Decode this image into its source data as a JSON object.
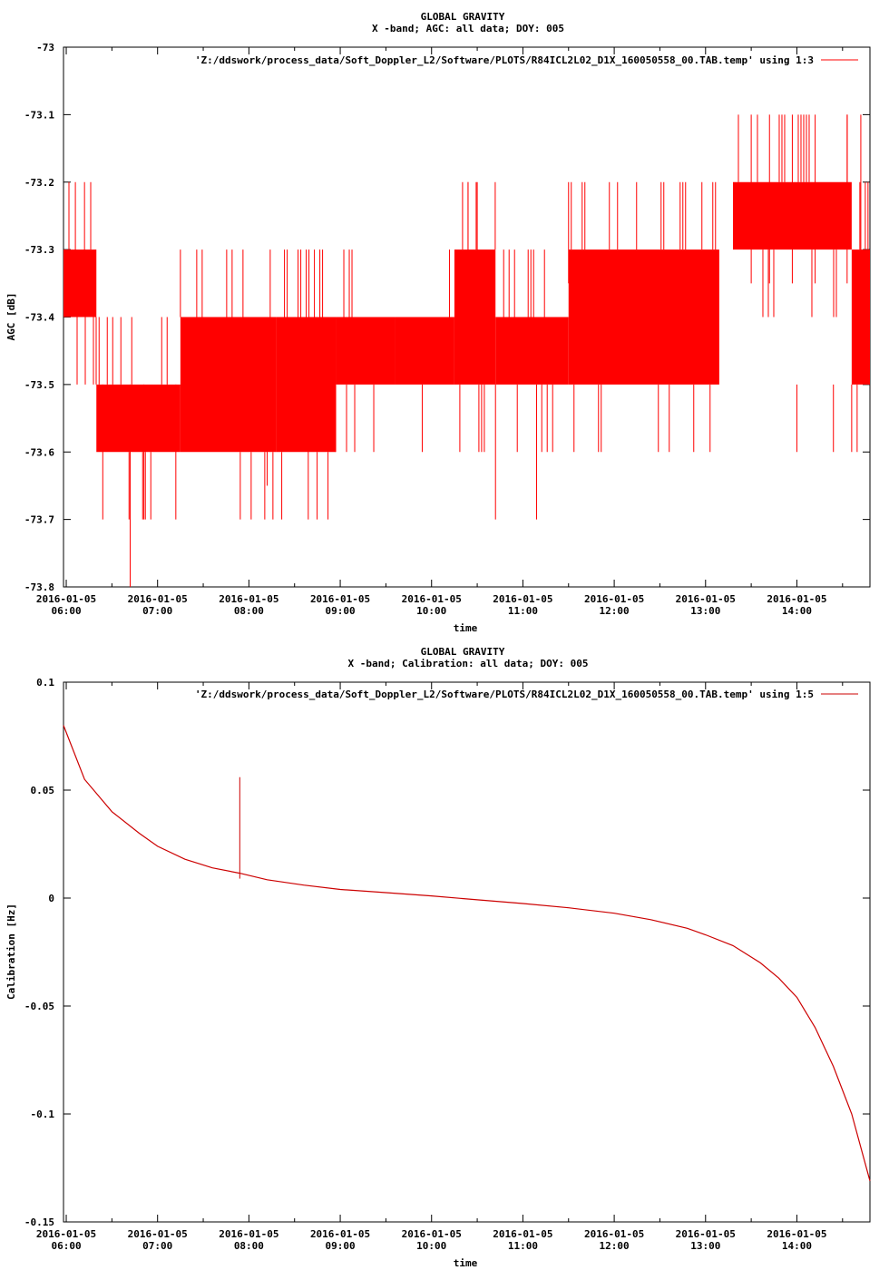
{
  "chart_data": [
    {
      "type": "line",
      "title": "GLOBAL GRAVITY",
      "subtitle": "X -band; AGC: all data; DOY: 005",
      "xlabel": "time",
      "ylabel": "AGC [dB]",
      "legend": "'Z:/ddswork/process_data/Soft_Doppler_L2/Software/PLOTS/R84ICL2L02_D1X_160050558_00.TAB.temp' using 1:3",
      "legend_position": "top-right",
      "series_color": "#ff0000",
      "xlim_hours": [
        5.97,
        14.8
      ],
      "ylim": [
        -73.8,
        -73.0
      ],
      "yticks": [
        -73.0,
        -73.1,
        -73.2,
        -73.3,
        -73.4,
        -73.5,
        -73.6,
        -73.7,
        -73.8
      ],
      "yticklabels": [
        "-73",
        "-73.1",
        "-73.2",
        "-73.3",
        "-73.4",
        "-73.5",
        "-73.6",
        "-73.7",
        "-73.8"
      ],
      "xticks_hours": [
        6,
        7,
        8,
        9,
        10,
        11,
        12,
        13,
        14
      ],
      "xticklabels": [
        [
          "2016-01-05",
          "06:00"
        ],
        [
          "2016-01-05",
          "07:00"
        ],
        [
          "2016-01-05",
          "08:00"
        ],
        [
          "2016-01-05",
          "09:00"
        ],
        [
          "2016-01-05",
          "10:00"
        ],
        [
          "2016-01-05",
          "11:00"
        ],
        [
          "2016-01-05",
          "12:00"
        ],
        [
          "2016-01-05",
          "13:00"
        ],
        [
          "2016-01-05",
          "14:00"
        ]
      ],
      "bands": [
        {
          "x": [
            5.97,
            6.33
          ],
          "y": [
            -73.4,
            -73.3
          ]
        },
        {
          "x": [
            6.33,
            7.25
          ],
          "y": [
            -73.6,
            -73.5
          ]
        },
        {
          "x": [
            7.25,
            8.3
          ],
          "y": [
            -73.6,
            -73.4
          ]
        },
        {
          "x": [
            8.3,
            8.95
          ],
          "y": [
            -73.6,
            -73.4
          ]
        },
        {
          "x": [
            8.95,
            9.6
          ],
          "y": [
            -73.5,
            -73.4
          ]
        },
        {
          "x": [
            9.6,
            10.25
          ],
          "y": [
            -73.5,
            -73.4
          ]
        },
        {
          "x": [
            10.25,
            10.7
          ],
          "y": [
            -73.5,
            -73.3
          ]
        },
        {
          "x": [
            10.7,
            11.5
          ],
          "y": [
            -73.5,
            -73.4
          ]
        },
        {
          "x": [
            11.5,
            13.15
          ],
          "y": [
            -73.5,
            -73.3
          ]
        },
        {
          "x": [
            13.3,
            14.6
          ],
          "y": [
            -73.3,
            -73.2
          ]
        },
        {
          "x": [
            14.6,
            14.8
          ],
          "y": [
            -73.5,
            -73.3
          ]
        }
      ],
      "spikes": [
        {
          "x": 6.2,
          "y": -73.2
        },
        {
          "x": 6.1,
          "y": -73.2
        },
        {
          "x": 6.4,
          "y": -73.7
        },
        {
          "x": 6.7,
          "y": -73.8
        },
        {
          "x": 6.85,
          "y": -73.7
        },
        {
          "x": 7.2,
          "y": -73.7
        },
        {
          "x": 8.2,
          "y": -73.65
        },
        {
          "x": 8.65,
          "y": -73.7
        },
        {
          "x": 10.4,
          "y": -73.2
        },
        {
          "x": 10.5,
          "y": -73.2
        },
        {
          "x": 10.7,
          "y": -73.7
        },
        {
          "x": 11.15,
          "y": -73.7
        },
        {
          "x": 11.5,
          "y": -73.2
        },
        {
          "x": 13.5,
          "y": -73.1
        },
        {
          "x": 13.7,
          "y": -73.1
        },
        {
          "x": 13.95,
          "y": -73.1
        },
        {
          "x": 14.2,
          "y": -73.1
        },
        {
          "x": 14.55,
          "y": -73.1
        },
        {
          "x": 14.7,
          "y": -73.1
        },
        {
          "x": 14.0,
          "y": -73.6
        },
        {
          "x": 14.4,
          "y": -73.6
        }
      ]
    },
    {
      "type": "line",
      "title": "GLOBAL GRAVITY",
      "subtitle": "X -band; Calibration: all data; DOY: 005",
      "xlabel": "time",
      "ylabel": "Calibration [Hz]",
      "legend": "'Z:/ddswork/process_data/Soft_Doppler_L2/Software/PLOTS/R84ICL2L02_D1X_160050558_00.TAB.temp' using 1:5",
      "legend_position": "top-right",
      "series_color": "#cc0000",
      "xlim_hours": [
        5.97,
        14.8
      ],
      "ylim": [
        -0.15,
        0.1
      ],
      "yticks": [
        0.1,
        0.05,
        0,
        -0.05,
        -0.1,
        -0.15
      ],
      "yticklabels": [
        "0.1",
        "0.05",
        "0",
        "-0.05",
        "-0.1",
        "-0.15"
      ],
      "xticks_hours": [
        6,
        7,
        8,
        9,
        10,
        11,
        12,
        13,
        14
      ],
      "xticklabels": [
        [
          "2016-01-05",
          "06:00"
        ],
        [
          "2016-01-05",
          "07:00"
        ],
        [
          "2016-01-05",
          "08:00"
        ],
        [
          "2016-01-05",
          "09:00"
        ],
        [
          "2016-01-05",
          "10:00"
        ],
        [
          "2016-01-05",
          "11:00"
        ],
        [
          "2016-01-05",
          "12:00"
        ],
        [
          "2016-01-05",
          "13:00"
        ],
        [
          "2016-01-05",
          "14:00"
        ]
      ],
      "series": [
        {
          "x_hours": [
            5.97,
            6.2,
            6.5,
            6.8,
            7.0,
            7.3,
            7.6,
            7.9,
            8.2,
            8.6,
            9.0,
            9.5,
            10.0,
            10.5,
            11.0,
            11.5,
            12.0,
            12.4,
            12.8,
            13.0,
            13.3,
            13.6,
            13.8,
            14.0,
            14.2,
            14.4,
            14.6,
            14.8
          ],
          "y": [
            0.08,
            0.055,
            0.04,
            0.03,
            0.024,
            0.018,
            0.014,
            0.0115,
            0.0085,
            0.006,
            0.004,
            0.0025,
            0.001,
            -0.0008,
            -0.0025,
            -0.0045,
            -0.007,
            -0.01,
            -0.014,
            -0.017,
            -0.022,
            -0.03,
            -0.037,
            -0.046,
            -0.06,
            -0.078,
            -0.1,
            -0.131
          ]
        }
      ],
      "spike": {
        "x_hours": 7.9,
        "y_low": 0.009,
        "y_high": 0.056
      }
    }
  ]
}
